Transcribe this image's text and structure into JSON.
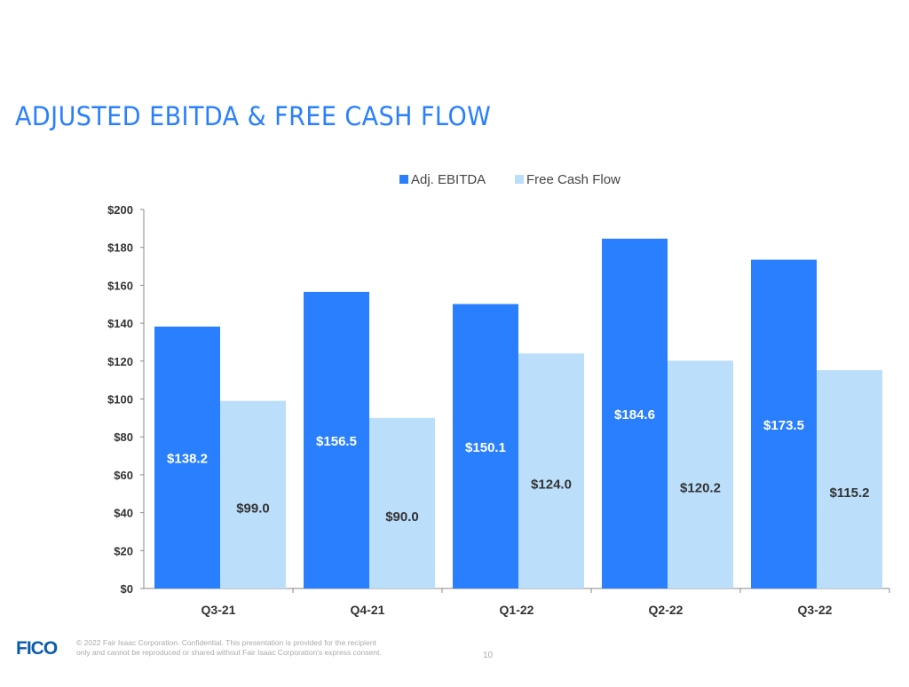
{
  "title": "ADJUSTED EBITDA & FREE CASH FLOW",
  "footer": {
    "logo": "FICO",
    "line1": "© 2022 Fair Isaac Corporation. Confidential. This presentation is provided for the recipient",
    "line2": "only and cannot be reproduced or shared without Fair Isaac Corporation's express consent.",
    "page": "10"
  },
  "chart_data": {
    "type": "bar",
    "categories": [
      "Q3-21",
      "Q4-21",
      "Q1-22",
      "Q2-22",
      "Q3-22"
    ],
    "series": [
      {
        "name": "Adj. EBITDA",
        "values": [
          138.2,
          156.5,
          150.1,
          184.6,
          173.5
        ],
        "labels": [
          "$138.2",
          "$156.5",
          "$150.1",
          "$184.6",
          "$173.5"
        ],
        "color": "#2a7fff"
      },
      {
        "name": "Free Cash Flow",
        "values": [
          99.0,
          90.0,
          124.0,
          120.2,
          115.2
        ],
        "labels": [
          "$99.0",
          "$90.0",
          "$124.0",
          "$120.2",
          "$115.2"
        ],
        "color": "#bbdefb"
      }
    ],
    "ylim": [
      0,
      200
    ],
    "yticks": [
      "$0",
      "$20",
      "$40",
      "$60",
      "$80",
      "$100",
      "$120",
      "$140",
      "$160",
      "$180",
      "$200"
    ],
    "legend": "top",
    "grid": false
  }
}
